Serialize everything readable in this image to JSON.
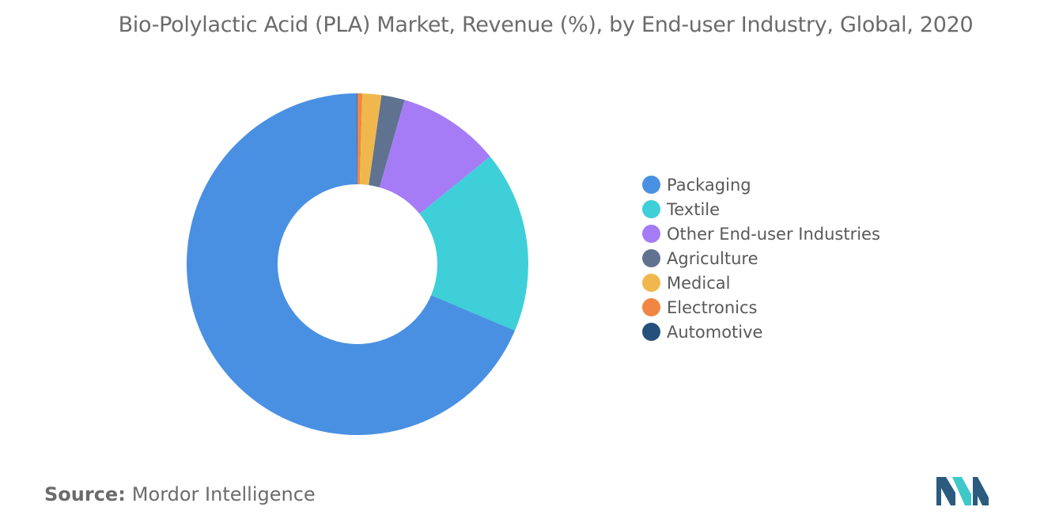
{
  "title": "Bio-Polylactic Acid (PLA) Market, Revenue (%), by End-user Industry, Global, 2020",
  "source": {
    "label": "Source:",
    "text": "Mordor Intelligence"
  },
  "logo": {
    "icon": "mordor-intelligence-logo",
    "colors": [
      "#2b5b7f",
      "#3ec8c8"
    ]
  },
  "chart_data": {
    "type": "pie",
    "style": "donut",
    "legend_position": "right",
    "start_angle_deg": -90,
    "direction": "clockwise",
    "categories": [
      "Packaging",
      "Textile",
      "Other End-user Industries",
      "Agriculture",
      "Medical",
      "Electronics",
      "Automotive"
    ],
    "values": [
      68.6,
      17.2,
      9.7,
      2.2,
      1.8,
      0.45,
      0.05
    ],
    "colors": [
      "#4a90e2",
      "#3ecfd9",
      "#a57cf5",
      "#5f7391",
      "#f0b84c",
      "#f08642",
      "#25507a"
    ],
    "segment_order": [
      5,
      4,
      3,
      2,
      1,
      0,
      6
    ]
  }
}
